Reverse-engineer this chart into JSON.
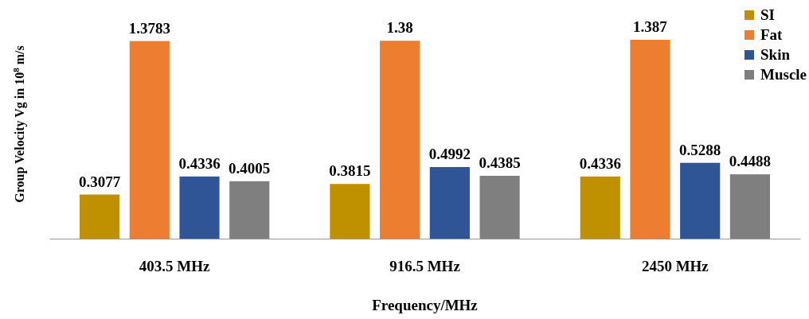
{
  "chart_data": {
    "type": "bar",
    "xlabel": "Frequency/MHz",
    "ylabel": "Group Velocity Vg in 10$^{8}$ m/s",
    "categories": [
      "403.5 MHz",
      "916.5 MHz",
      "2450 MHz"
    ],
    "series": [
      {
        "name": "SI",
        "color": "#bf9000",
        "values": [
          0.3077,
          0.3815,
          0.4336
        ]
      },
      {
        "name": "Fat",
        "color": "#ed7d31",
        "values": [
          1.3783,
          1.38,
          1.387
        ]
      },
      {
        "name": "Skin",
        "color": "#2f5597",
        "values": [
          0.4336,
          0.4992,
          0.5288
        ]
      },
      {
        "name": "Muscle",
        "color": "#7f7f7f",
        "values": [
          0.4005,
          0.4385,
          0.4488
        ]
      }
    ],
    "data_labels": true,
    "legend": "top right",
    "grid": false
  }
}
